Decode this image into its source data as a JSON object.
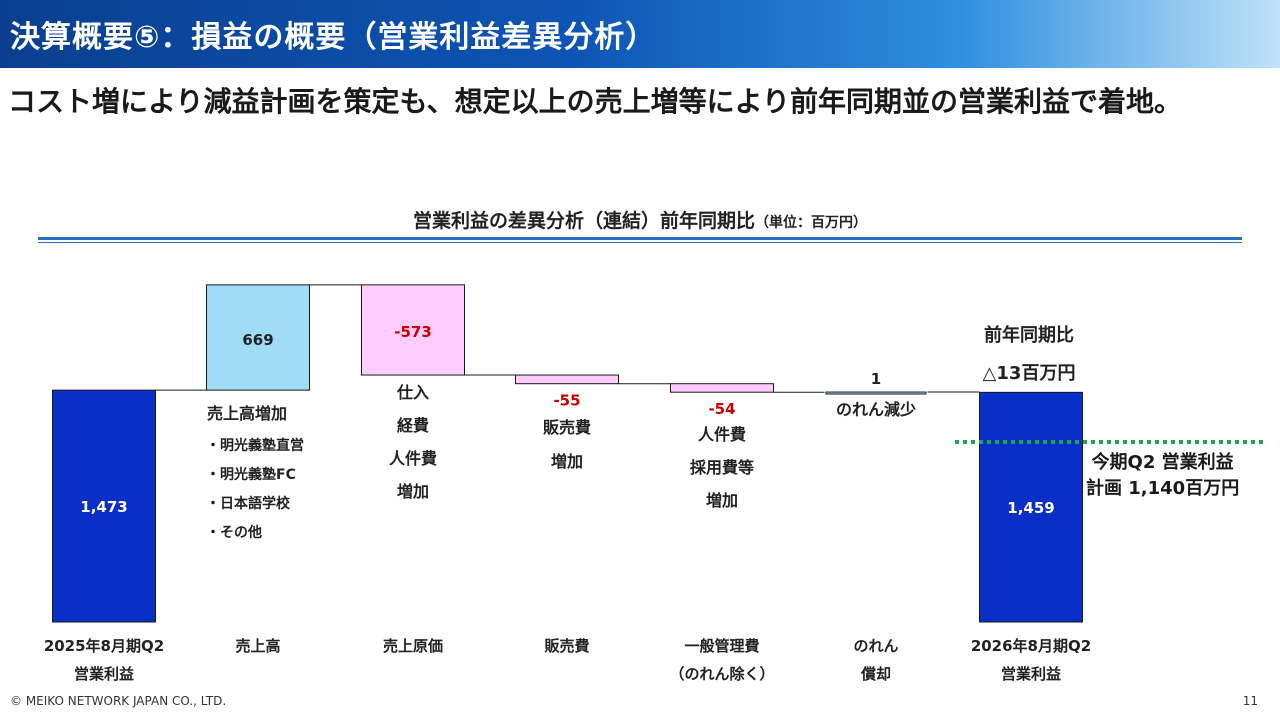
{
  "header": {
    "title": "決算概要⑤：損益の概要（営業利益差異分析）"
  },
  "headline": "コスト増により減益計画を策定も、想定以上の売上増等により前年同期並の営業利益で着地。",
  "chart_title": {
    "main": "営業利益の差異分析（連結）前年同期比",
    "unit": "（単位：百万円）"
  },
  "colors": {
    "total_bar": "#0a2fc8",
    "increase_bar": "#9fdcf5",
    "decrease_bar": "#ffccff",
    "negative_text": "#cc0000",
    "plan_line": "#1aa64a"
  },
  "chart_data": {
    "type": "waterfall",
    "title": "営業利益の差異分析（連結）前年同期比",
    "unit": "百万円",
    "steps": [
      {
        "category": [
          "2025年8月期Q2",
          "営業利益"
        ],
        "kind": "total",
        "value": 1473,
        "label": "1,473",
        "notes": [],
        "bullets": []
      },
      {
        "category": [
          "売上高"
        ],
        "kind": "delta",
        "value": 669,
        "label": "669",
        "notes": [
          "売上高増加"
        ],
        "bullets": [
          "・明光義塾直営",
          "・明光義塾FC",
          "・日本語学校",
          "・その他"
        ]
      },
      {
        "category": [
          "売上原価"
        ],
        "kind": "delta",
        "value": -573,
        "label": "-573",
        "notes": [
          "仕入",
          "経費",
          "人件費",
          "増加"
        ],
        "bullets": []
      },
      {
        "category": [
          "販売費"
        ],
        "kind": "delta",
        "value": -55,
        "label": "-55",
        "notes": [
          "販売費",
          "増加"
        ],
        "bullets": []
      },
      {
        "category": [
          "一般管理費",
          "（のれん除く）"
        ],
        "kind": "delta",
        "value": -54,
        "label": "-54",
        "notes": [
          "人件費",
          "採用費等",
          "増加"
        ],
        "bullets": []
      },
      {
        "category": [
          "のれん",
          "償却"
        ],
        "kind": "delta",
        "value": 1,
        "label": "1",
        "notes": [
          "のれん減少"
        ],
        "bullets": []
      },
      {
        "category": [
          "2026年8月期Q2",
          "営業利益"
        ],
        "kind": "total",
        "value": 1459,
        "label": "1,459",
        "notes": [],
        "bullets": []
      }
    ],
    "comparison": {
      "title": "前年同期比",
      "value": "△13百万円"
    },
    "plan": {
      "value": 1140,
      "label_lines": [
        "今期Q2 営業利益",
        "計画 1,140百万円"
      ]
    }
  },
  "footer": {
    "copyright": "© MEIKO NETWORK JAPAN CO., LTD.",
    "page": "11"
  }
}
